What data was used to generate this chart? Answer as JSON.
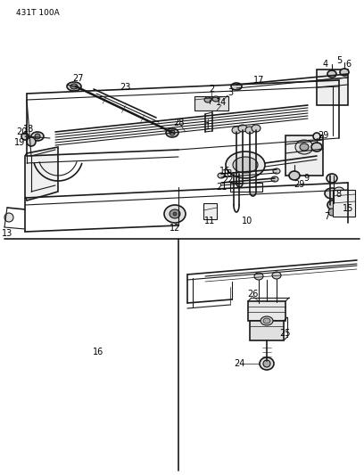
{
  "bg_color": "#ffffff",
  "line_color": "#1a1a1a",
  "text_color": "#000000",
  "header_text": "431T 100A",
  "header_fontsize": 6.5,
  "label_fontsize": 7,
  "fig_width": 4.08,
  "fig_height": 5.33,
  "dpi": 100
}
